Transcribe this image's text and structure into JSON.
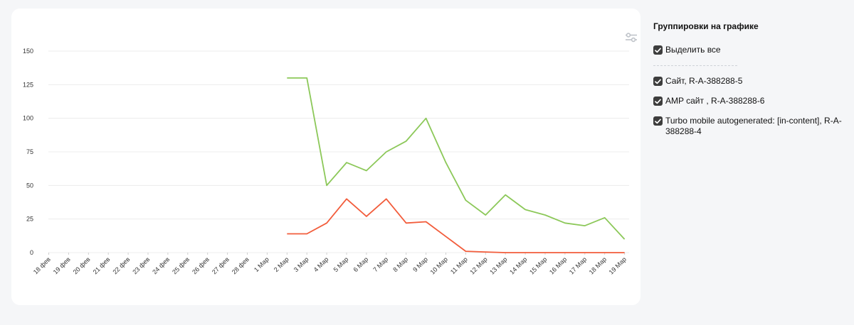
{
  "panel": {
    "title": "Группировки на графике",
    "select_all": {
      "label": "Выделить все",
      "checked": true
    },
    "groups": [
      {
        "label": "Сайт, R-A-388288-5",
        "checked": true
      },
      {
        "label": "AMP сайт , R-A-388288-6",
        "checked": true
      },
      {
        "label": "Turbo mobile autogenerated: [in-content], R-A-388288-4",
        "checked": true
      }
    ]
  },
  "icons": {
    "settings": "sliders-icon",
    "checkbox": "check-icon"
  },
  "colors": {
    "green_series": "#8cc859",
    "red_series": "#f25c3b",
    "grid": "#ececec"
  },
  "chart_data": {
    "type": "line",
    "categories": [
      "18 фев",
      "19 фев",
      "20 фев",
      "21 фев",
      "22 фев",
      "23 фев",
      "24 фев",
      "25 фев",
      "26 фев",
      "27 фев",
      "28 фев",
      "1 Мар",
      "2 Мар",
      "3 Мар",
      "4 Мар",
      "5 Мар",
      "6 Мар",
      "7 Мар",
      "8 Мар",
      "9 Мар",
      "10 Мар",
      "11 Мар",
      "12 Мар",
      "13 Мар",
      "14 Мар",
      "15 Мар",
      "16 Мар",
      "17 Мар",
      "18 Мар",
      "19 Мар"
    ],
    "y_ticks": [
      0,
      25,
      50,
      75,
      100,
      125,
      150
    ],
    "ylim": [
      0,
      150
    ],
    "grid": true,
    "series": [
      {
        "color": "#8cc859",
        "values": [
          null,
          null,
          null,
          null,
          null,
          null,
          null,
          null,
          null,
          null,
          null,
          null,
          130,
          130,
          50,
          67,
          61,
          75,
          83,
          100,
          67,
          39,
          28,
          43,
          32,
          28,
          22,
          20,
          26,
          10
        ]
      },
      {
        "color": "#f25c3b",
        "values": [
          null,
          null,
          null,
          null,
          null,
          null,
          null,
          null,
          null,
          null,
          null,
          null,
          14,
          14,
          22,
          40,
          27,
          40,
          22,
          23,
          12,
          1,
          0.5,
          0,
          0,
          0,
          0,
          0,
          0,
          0
        ]
      }
    ]
  }
}
